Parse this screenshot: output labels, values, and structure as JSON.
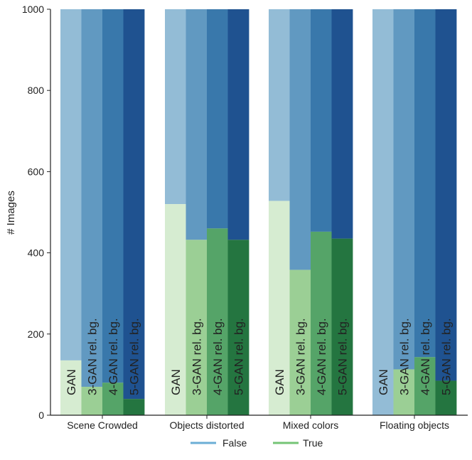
{
  "chart_data": {
    "type": "bar",
    "subtype": "stacked",
    "title": "",
    "xlabel": "",
    "ylabel": "# Images",
    "ylim": [
      0,
      1000
    ],
    "yticks": [
      0,
      200,
      400,
      600,
      800,
      1000
    ],
    "grid": false,
    "legend_position": "bottom-center",
    "categories": [
      "Scene Crowded",
      "Objects distorted",
      "Mixed colors",
      "Floating objects"
    ],
    "models": [
      "GAN",
      "3-GAN rel. bg.",
      "4-GAN rel. bg.",
      "5-GAN rel. bg."
    ],
    "series": [
      {
        "name": "True",
        "stack": "bottom",
        "values": [
          [
            135,
            70,
            80,
            40
          ],
          [
            520,
            432,
            460,
            432
          ],
          [
            528,
            358,
            452,
            435
          ],
          [
            0,
            113,
            143,
            85
          ]
        ]
      },
      {
        "name": "False",
        "stack": "top",
        "values": [
          [
            865,
            930,
            920,
            960
          ],
          [
            480,
            568,
            540,
            568
          ],
          [
            472,
            642,
            548,
            565
          ],
          [
            1000,
            887,
            857,
            915
          ]
        ]
      }
    ],
    "legend": [
      {
        "name": "False",
        "color": "#6baed6"
      },
      {
        "name": "True",
        "color": "#74c476"
      }
    ],
    "colors": {
      "false": [
        "#93bcd6",
        "#6199c1",
        "#3978ab",
        "#1f5290"
      ],
      "true": [
        "#d6ecd1",
        "#9bcf95",
        "#55a468",
        "#247540"
      ]
    }
  }
}
